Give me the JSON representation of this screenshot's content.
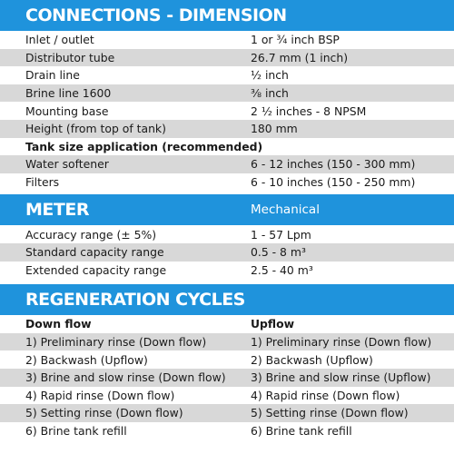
{
  "connections": {
    "title": "CONNECTIONS - DIMENSION",
    "rows": [
      {
        "label": "Inlet / outlet",
        "value": "1 or ¾ inch BSP"
      },
      {
        "label": "Distributor tube",
        "value": "26.7 mm (1 inch)"
      },
      {
        "label": "Drain line",
        "value": "½ inch"
      },
      {
        "label": "Brine line 1600",
        "value": "⅜ inch"
      },
      {
        "label": "Mounting base",
        "value": "2 ½ inches - 8 NPSM"
      },
      {
        "label": "Height (from top of tank)",
        "value": "180 mm"
      }
    ],
    "subheading": "Tank size application (recommended)",
    "tank_rows": [
      {
        "label": "Water softener",
        "value": "6 - 12 inches (150 - 300 mm)"
      },
      {
        "label": "Filters",
        "value": "6 - 10 inches (150 - 250 mm)"
      }
    ]
  },
  "meter": {
    "title": "METER",
    "type": "Mechanical",
    "rows": [
      {
        "label": "Accuracy range (± 5%)",
        "value": "1 - 57 Lpm"
      },
      {
        "label": "Standard capacity range",
        "value": "0.5 - 8 m³"
      },
      {
        "label": "Extended capacity range",
        "value": "2.5 - 40 m³"
      }
    ]
  },
  "regeneration": {
    "title": "REGENERATION CYCLES",
    "col1_heading": "Down flow",
    "col2_heading": "Upflow",
    "rows": [
      {
        "down": "1) Preliminary rinse (Down flow)",
        "up": "1) Preliminary rinse (Down flow)"
      },
      {
        "down": "2) Backwash (Upflow)",
        "up": "2) Backwash (Upflow)"
      },
      {
        "down": "3) Brine and slow rinse (Down flow)",
        "up": "3) Brine and slow rinse (Upflow)"
      },
      {
        "down": "4) Rapid rinse (Down flow)",
        "up": "4) Rapid rinse (Down flow)"
      },
      {
        "down": "5) Setting rinse (Down flow)",
        "up": "5) Setting rinse (Down flow)"
      },
      {
        "down": "6) Brine tank refill",
        "up": "6) Brine tank refill"
      }
    ]
  },
  "colors": {
    "header": "#1f93dc",
    "shade": "#d8d8d8"
  }
}
